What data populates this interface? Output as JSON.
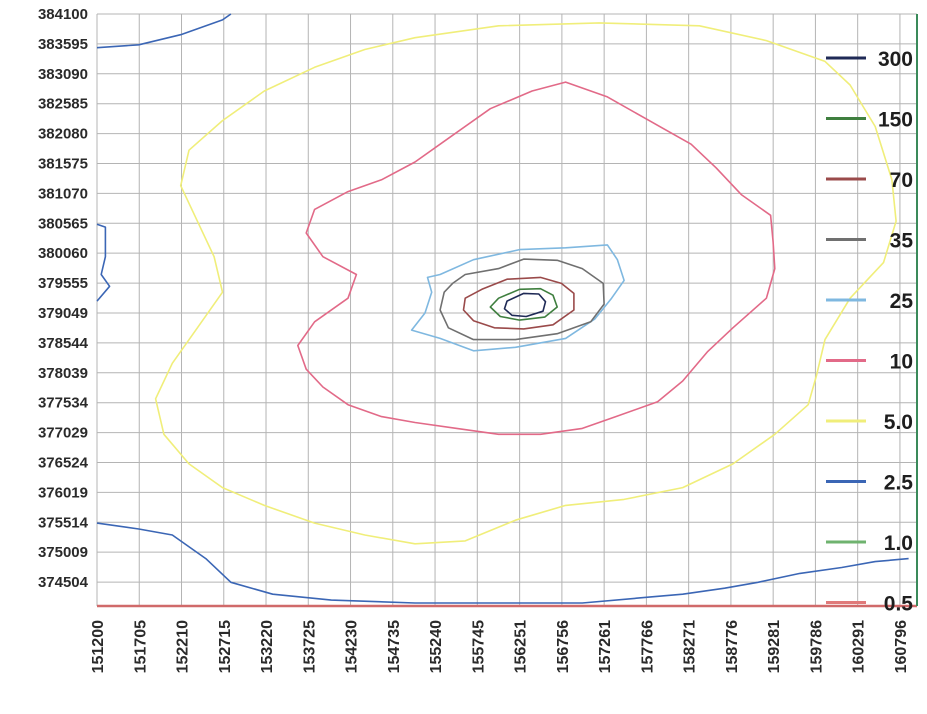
{
  "chart_data": {
    "type": "contour",
    "title": "",
    "xlabel": "",
    "ylabel": "",
    "grid": true,
    "legend_position": "right",
    "xlim": [
      151200,
      161000
    ],
    "ylim": [
      374100,
      384100
    ],
    "x_ticks": [
      "151200",
      "151705",
      "152210",
      "152715",
      "153220",
      "153725",
      "154230",
      "154735",
      "155240",
      "155745",
      "156251",
      "156756",
      "157261",
      "157766",
      "158271",
      "158776",
      "159281",
      "159786",
      "160291",
      "160796"
    ],
    "y_ticks": [
      "384100",
      "383595",
      "383090",
      "382585",
      "382080",
      "381575",
      "381070",
      "380565",
      "380060",
      "379555",
      "379049",
      "378544",
      "378039",
      "377534",
      "377029",
      "376524",
      "376019",
      "375514",
      "375009",
      "374504"
    ],
    "legend": [
      {
        "label": "300",
        "color": "#1f2a56"
      },
      {
        "label": "150",
        "color": "#3f7f3f"
      },
      {
        "label": "70",
        "color": "#9a4a4a"
      },
      {
        "label": "35",
        "color": "#707070"
      },
      {
        "label": "25",
        "color": "#7fb8e0"
      },
      {
        "label": "10",
        "color": "#e26a88"
      },
      {
        "label": "5.0",
        "color": "#f0ee7a"
      },
      {
        "label": "2.5",
        "color": "#3b66b5"
      },
      {
        "label": "1.0",
        "color": "#6fb36f"
      },
      {
        "label": "0.5",
        "color": "#e07a7a"
      }
    ],
    "series": [
      {
        "level": "25",
        "color": "#7fb8e0",
        "points": [
          [
            155300,
            379700
          ],
          [
            155700,
            379950
          ],
          [
            156250,
            380120
          ],
          [
            156800,
            380150
          ],
          [
            157300,
            380200
          ],
          [
            157420,
            379950
          ],
          [
            157500,
            379600
          ],
          [
            157350,
            379300
          ],
          [
            157150,
            378950
          ],
          [
            156800,
            378620
          ],
          [
            156200,
            378470
          ],
          [
            155700,
            378410
          ],
          [
            155300,
            378620
          ],
          [
            154960,
            378760
          ],
          [
            155120,
            379050
          ],
          [
            155200,
            379400
          ],
          [
            155150,
            379650
          ]
        ]
      },
      {
        "level": "35",
        "color": "#707070",
        "points": [
          [
            155600,
            379700
          ],
          [
            156000,
            379800
          ],
          [
            156300,
            379960
          ],
          [
            156700,
            379940
          ],
          [
            157000,
            379800
          ],
          [
            157250,
            379550
          ],
          [
            157260,
            379200
          ],
          [
            157100,
            378900
          ],
          [
            156700,
            378700
          ],
          [
            156200,
            378600
          ],
          [
            155700,
            378600
          ],
          [
            155400,
            378800
          ],
          [
            155300,
            379100
          ],
          [
            155350,
            379400
          ],
          [
            155450,
            379550
          ]
        ]
      },
      {
        "level": "70",
        "color": "#9a4a4a",
        "points": [
          [
            155800,
            379450
          ],
          [
            156100,
            379620
          ],
          [
            156500,
            379650
          ],
          [
            156750,
            379550
          ],
          [
            156900,
            379380
          ],
          [
            156900,
            379100
          ],
          [
            156650,
            378850
          ],
          [
            156300,
            378780
          ],
          [
            155950,
            378800
          ],
          [
            155700,
            378920
          ],
          [
            155580,
            379100
          ],
          [
            155600,
            379300
          ]
        ]
      },
      {
        "level": "150",
        "color": "#3f7f3f",
        "points": [
          [
            156000,
            379300
          ],
          [
            156250,
            379450
          ],
          [
            156500,
            379460
          ],
          [
            156650,
            379350
          ],
          [
            156700,
            379150
          ],
          [
            156550,
            378980
          ],
          [
            156250,
            378930
          ],
          [
            156020,
            378990
          ],
          [
            155900,
            379150
          ]
        ]
      },
      {
        "level": "300",
        "color": "#1f2a56",
        "points": [
          [
            156100,
            379250
          ],
          [
            156300,
            379380
          ],
          [
            156480,
            379370
          ],
          [
            156560,
            379240
          ],
          [
            156530,
            379080
          ],
          [
            156330,
            378990
          ],
          [
            156160,
            379010
          ],
          [
            156070,
            379120
          ]
        ]
      },
      {
        "level": "10",
        "color": "#e26a88",
        "points": [
          [
            155400,
            382000
          ],
          [
            155900,
            382500
          ],
          [
            156400,
            382800
          ],
          [
            156800,
            382950
          ],
          [
            157300,
            382700
          ],
          [
            157800,
            382300
          ],
          [
            158300,
            381900
          ],
          [
            158600,
            381500
          ],
          [
            158900,
            381050
          ],
          [
            159250,
            380700
          ],
          [
            159280,
            380250
          ],
          [
            159300,
            379800
          ],
          [
            159200,
            379300
          ],
          [
            158800,
            378800
          ],
          [
            158500,
            378400
          ],
          [
            158200,
            377900
          ],
          [
            157900,
            377550
          ],
          [
            157400,
            377300
          ],
          [
            157000,
            377100
          ],
          [
            156500,
            377000
          ],
          [
            156000,
            377000
          ],
          [
            155500,
            377100
          ],
          [
            155000,
            377200
          ],
          [
            154600,
            377300
          ],
          [
            154200,
            377500
          ],
          [
            153900,
            377800
          ],
          [
            153700,
            378100
          ],
          [
            153600,
            378500
          ],
          [
            153800,
            378900
          ],
          [
            154200,
            379300
          ],
          [
            154300,
            379700
          ],
          [
            153900,
            380000
          ],
          [
            153700,
            380400
          ],
          [
            153800,
            380800
          ],
          [
            154200,
            381100
          ],
          [
            154600,
            381300
          ],
          [
            155000,
            381600
          ]
        ]
      },
      {
        "level": "5.0",
        "color": "#f0ee7a",
        "points": [
          [
            155000,
            383700
          ],
          [
            156000,
            383900
          ],
          [
            157200,
            383950
          ],
          [
            158400,
            383900
          ],
          [
            159200,
            383650
          ],
          [
            159900,
            383300
          ],
          [
            160200,
            382900
          ],
          [
            160500,
            382200
          ],
          [
            160700,
            381300
          ],
          [
            160750,
            380600
          ],
          [
            160600,
            379900
          ],
          [
            160200,
            379300
          ],
          [
            159900,
            378600
          ],
          [
            159800,
            378000
          ],
          [
            159700,
            377500
          ],
          [
            159300,
            377000
          ],
          [
            158800,
            376500
          ],
          [
            158200,
            376100
          ],
          [
            157500,
            375900
          ],
          [
            156800,
            375800
          ],
          [
            156200,
            375550
          ],
          [
            155600,
            375200
          ],
          [
            155000,
            375150
          ],
          [
            154400,
            375300
          ],
          [
            153800,
            375500
          ],
          [
            153200,
            375800
          ],
          [
            152700,
            376100
          ],
          [
            152300,
            376500
          ],
          [
            152000,
            377000
          ],
          [
            151900,
            377600
          ],
          [
            152100,
            378200
          ],
          [
            152400,
            378800
          ],
          [
            152700,
            379400
          ],
          [
            152600,
            380000
          ],
          [
            152400,
            380600
          ],
          [
            152200,
            381200
          ],
          [
            152300,
            381800
          ],
          [
            152700,
            382300
          ],
          [
            153200,
            382800
          ],
          [
            153800,
            383200
          ],
          [
            154400,
            383500
          ]
        ]
      },
      {
        "level": "2.5",
        "color": "#3b66b5",
        "points": [
          [
            151200,
            383530
          ],
          [
            151700,
            383580
          ],
          [
            152200,
            383750
          ],
          [
            152700,
            384000
          ],
          [
            152800,
            384100
          ]
        ]
      },
      {
        "level": "2.5",
        "color": "#3b66b5",
        "points": [
          [
            151200,
            380550
          ],
          [
            151300,
            380500
          ],
          [
            151300,
            380000
          ],
          [
            151250,
            379700
          ],
          [
            151350,
            379500
          ],
          [
            151200,
            379250
          ]
        ]
      },
      {
        "level": "2.5",
        "color": "#3b66b5",
        "points": [
          [
            151200,
            375500
          ],
          [
            151700,
            375400
          ],
          [
            152100,
            375300
          ],
          [
            152500,
            374900
          ],
          [
            152800,
            374500
          ],
          [
            153300,
            374300
          ],
          [
            154000,
            374200
          ],
          [
            155000,
            374150
          ],
          [
            156000,
            374150
          ],
          [
            157000,
            374150
          ],
          [
            157800,
            374250
          ],
          [
            158200,
            374300
          ],
          [
            158700,
            374400
          ],
          [
            159100,
            374500
          ],
          [
            159600,
            374650
          ],
          [
            160100,
            374750
          ],
          [
            160500,
            374850
          ],
          [
            160900,
            374900
          ]
        ]
      }
    ]
  }
}
